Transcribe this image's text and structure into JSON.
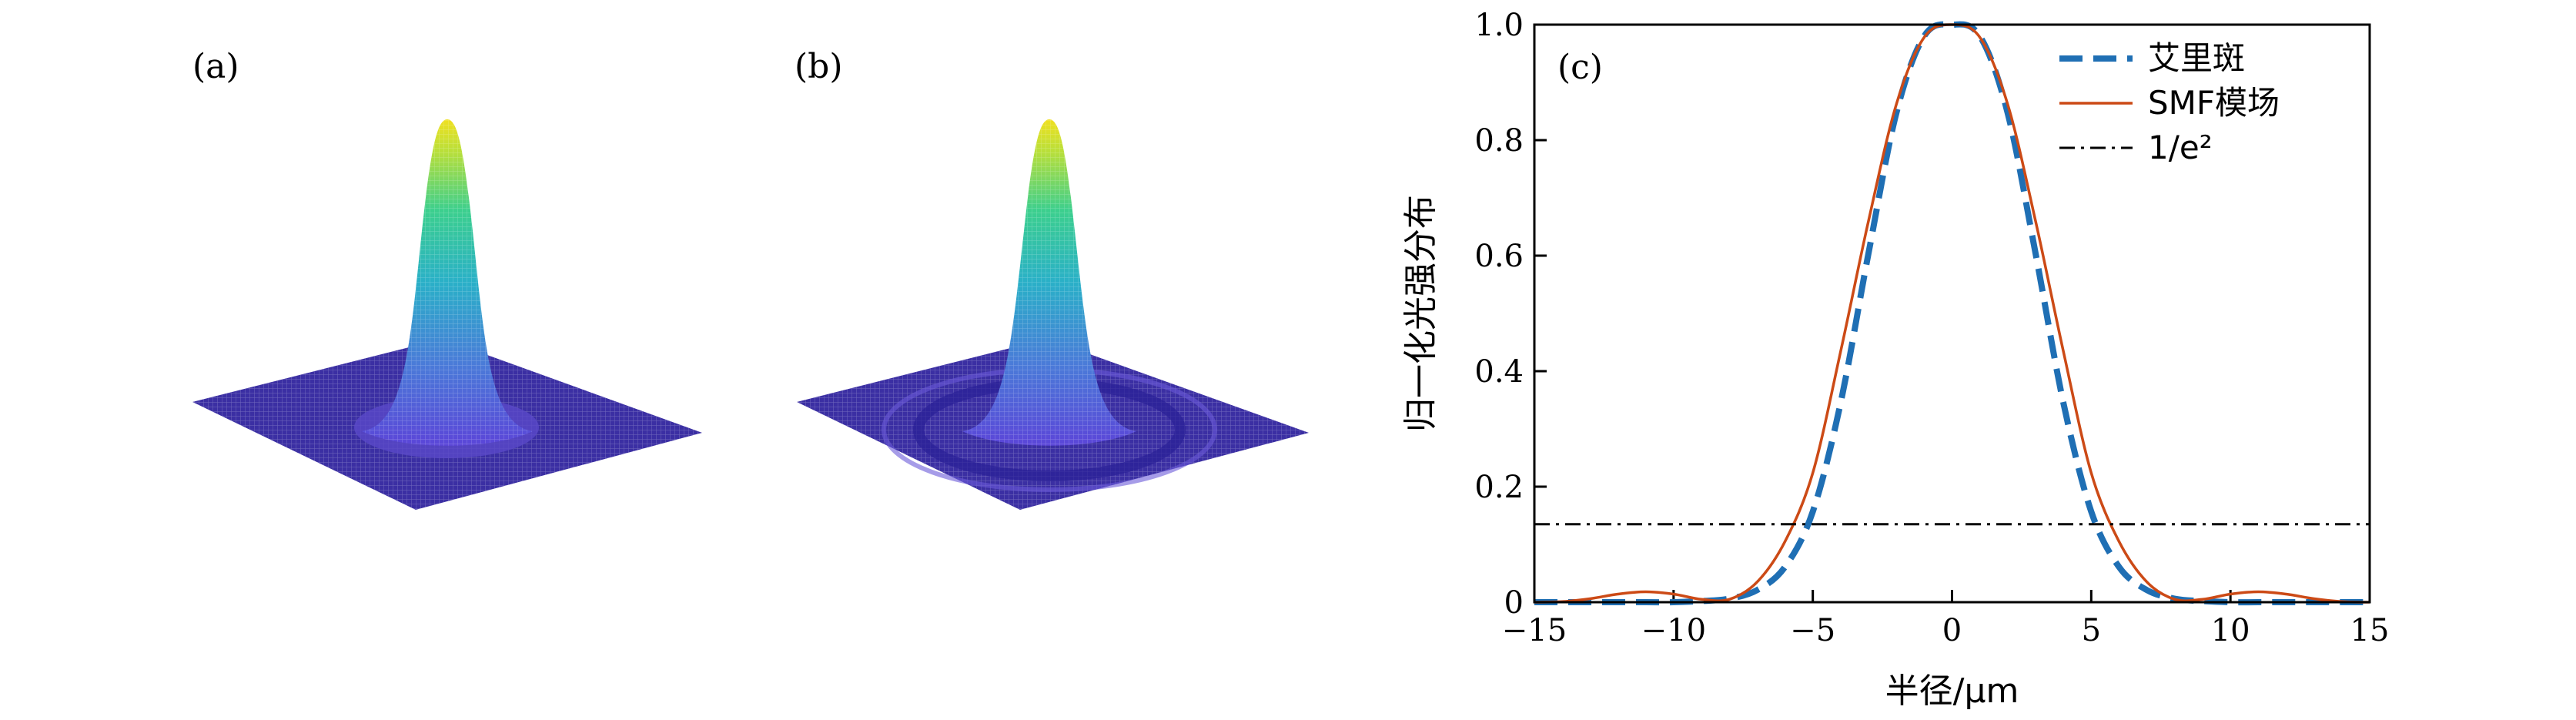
{
  "panels": {
    "a": {
      "label": "(a)"
    },
    "b": {
      "label": "(b)"
    }
  },
  "chart_data": {
    "type": "line",
    "panel_label": "(c)",
    "xlabel": "半径/μm",
    "ylabel": "归一化光强分布",
    "xlim": [
      -15,
      15
    ],
    "ylim": [
      0,
      1.0
    ],
    "xticks": [
      -15,
      -10,
      -5,
      0,
      5,
      10,
      15
    ],
    "xtick_labels": [
      "−15",
      "−10",
      "−5",
      "0",
      "5",
      "10",
      "15"
    ],
    "yticks": [
      0,
      0.2,
      0.4,
      0.6,
      0.8,
      1.0
    ],
    "ytick_labels": [
      "0",
      "0.2",
      "0.4",
      "0.6",
      "0.8",
      "1.0"
    ],
    "grid": false,
    "legend_position": "top-right",
    "colors": {
      "airy": "#1f6fb4",
      "smf": "#cc4a16",
      "threshold": "#000000"
    },
    "series": [
      {
        "key": "airy",
        "name": "艾里斑",
        "style": "dashed",
        "x": [
          -15,
          -14,
          -13,
          -12,
          -11,
          -10,
          -9,
          -8,
          -7,
          -6,
          -5,
          -4,
          -3,
          -2,
          -1,
          0,
          1,
          2,
          3,
          4,
          5,
          6,
          7,
          8,
          9,
          10,
          11,
          12,
          13,
          14,
          15
        ],
        "y": [
          0.0,
          0.0,
          0.0,
          0.0,
          0.0,
          0.0,
          0.002,
          0.006,
          0.021,
          0.061,
          0.157,
          0.345,
          0.604,
          0.847,
          0.98,
          1.0,
          0.98,
          0.847,
          0.604,
          0.345,
          0.157,
          0.061,
          0.021,
          0.006,
          0.002,
          0.0,
          0.0,
          0.0,
          0.0,
          0.0,
          0.0
        ]
      },
      {
        "key": "smf",
        "name": "SMF模场",
        "style": "solid",
        "x": [
          -15,
          -14,
          -13,
          -12,
          -11,
          -10,
          -9,
          -8,
          -7,
          -6,
          -5,
          -4,
          -3,
          -2,
          -1,
          0,
          1,
          2,
          3,
          4,
          5,
          6,
          7,
          8,
          9,
          10,
          11,
          12,
          13,
          14,
          15
        ],
        "y": [
          0.0,
          0.001,
          0.006,
          0.014,
          0.018,
          0.014,
          0.005,
          0.005,
          0.035,
          0.105,
          0.224,
          0.434,
          0.66,
          0.862,
          0.978,
          1.0,
          0.978,
          0.862,
          0.66,
          0.434,
          0.224,
          0.105,
          0.035,
          0.005,
          0.005,
          0.014,
          0.018,
          0.014,
          0.006,
          0.001,
          0.0
        ]
      },
      {
        "key": "threshold",
        "name": "1/e²",
        "style": "dashdot",
        "x": [
          -15,
          15
        ],
        "y": [
          0.135,
          0.135
        ]
      }
    ]
  }
}
